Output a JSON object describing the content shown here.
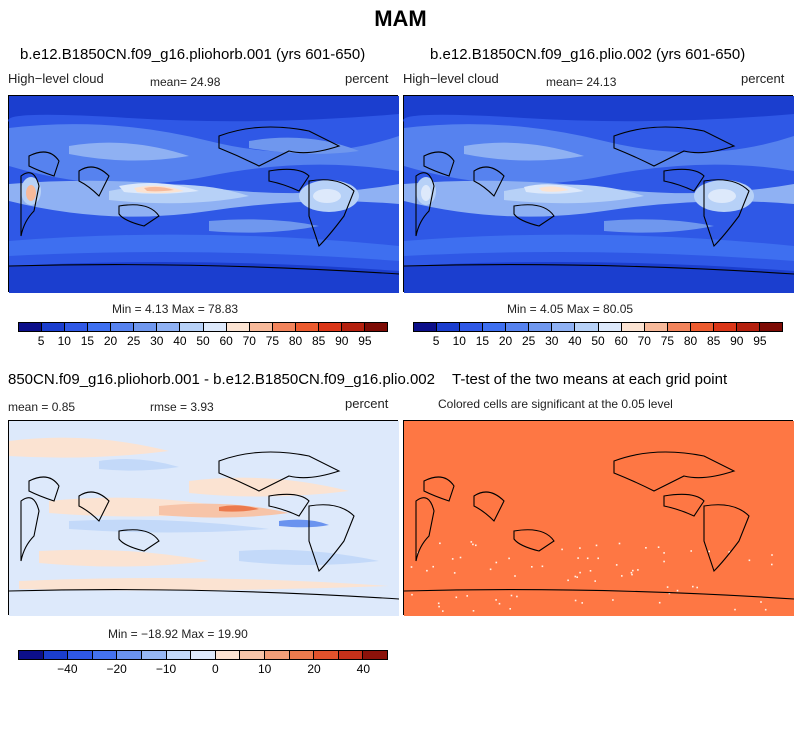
{
  "title": "MAM",
  "panels": {
    "p1": {
      "title": "b.e12.B1850CN.f09_g16.pliohorb.001 (yrs 601-650)",
      "left": "High−level cloud",
      "center": "mean=  24.98",
      "right": "percent",
      "minmax": "Min =    4.13  Max =   78.83"
    },
    "p2": {
      "title": "b.e12.B1850CN.f09_g16.plio.002 (yrs 601-650)",
      "left": "High−level cloud",
      "center": "mean=  24.13",
      "right": "percent",
      "minmax": "Min =    4.05  Max =   80.05"
    },
    "p3": {
      "title": "850CN.f09_g16.pliohorb.001 - b.e12.B1850CN.f09_g16.plio.002",
      "left": "mean =    0.85",
      "center": "rmse =    3.93",
      "right": "percent",
      "minmax": "Min = −18.92  Max =   19.90"
    },
    "p4": {
      "title": "T-test of the two means at each grid point",
      "subtitle": "Colored cells are significant at the 0.05 level"
    }
  },
  "chart_data": [
    {
      "type": "heatmap",
      "panel": "p1",
      "variable": "High-level cloud",
      "units": "percent",
      "mean": 24.98,
      "min": 4.13,
      "max": 78.83,
      "colorbar_levels": [
        5,
        10,
        15,
        20,
        25,
        30,
        40,
        50,
        60,
        70,
        75,
        80,
        85,
        90,
        95
      ]
    },
    {
      "type": "heatmap",
      "panel": "p2",
      "variable": "High-level cloud",
      "units": "percent",
      "mean": 24.13,
      "min": 4.05,
      "max": 80.05,
      "colorbar_levels": [
        5,
        10,
        15,
        20,
        25,
        30,
        40,
        50,
        60,
        70,
        75,
        80,
        85,
        90,
        95
      ]
    },
    {
      "type": "heatmap",
      "panel": "p3",
      "units": "percent",
      "mean": 0.85,
      "rmse": 3.93,
      "min": -18.92,
      "max": 19.9,
      "colorbar_labels": [
        "−40",
        "−20",
        "−10",
        "0",
        "10",
        "20",
        "40"
      ]
    },
    {
      "type": "heatmap",
      "panel": "p4",
      "significance_level": 0.05
    }
  ],
  "colors": {
    "abs_scale": [
      "#0c0f8a",
      "#1b3ecf",
      "#2f58e6",
      "#3e6ff0",
      "#5682ef",
      "#6f97ee",
      "#8fb1f3",
      "#b7d1f7",
      "#dde9fb",
      "#fbe3d2",
      "#f7b99a",
      "#f2845c",
      "#ec5b2f",
      "#db3618",
      "#b4200e",
      "#7d0b05"
    ],
    "diff_scale": [
      "#0c0f8a",
      "#1b3ecf",
      "#2f58e6",
      "#4472ef",
      "#6a93ef",
      "#96b7f4",
      "#c3d9f9",
      "#dde9fb",
      "#fbe3d2",
      "#f7c4a8",
      "#f29e78",
      "#ec7a4d",
      "#e0522c",
      "#c5311a",
      "#8c120a"
    ],
    "significant": "#fe7744"
  }
}
